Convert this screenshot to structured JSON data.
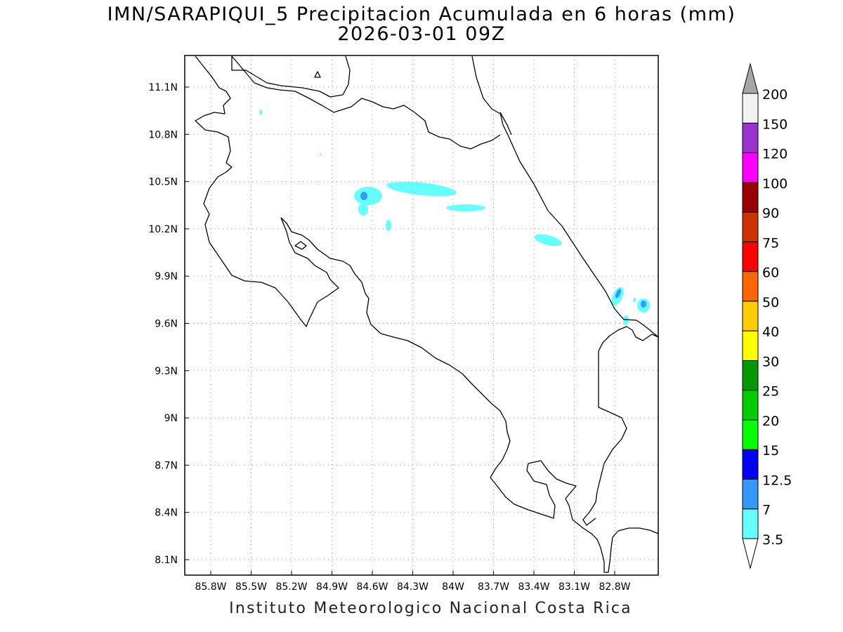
{
  "title": {
    "line1": "IMN/SARAPIQUI_5 Precipitacion Acumulada en 6 horas (mm)",
    "line2": "2026-03-01 09Z"
  },
  "credit": "Instituto Meteorologico Nacional Costa Rica",
  "map": {
    "lon_range": [
      -86.0,
      -82.5
    ],
    "lat_range": [
      8.0,
      11.3
    ],
    "lon_ticks": [
      {
        "value": -85.8,
        "label": "85.8W"
      },
      {
        "value": -85.5,
        "label": "85.5W"
      },
      {
        "value": -85.2,
        "label": "85.2W"
      },
      {
        "value": -84.9,
        "label": "84.9W"
      },
      {
        "value": -84.6,
        "label": "84.6W"
      },
      {
        "value": -84.3,
        "label": "84.3W"
      },
      {
        "value": -84.0,
        "label": "84W"
      },
      {
        "value": -83.7,
        "label": "83.7W"
      },
      {
        "value": -83.4,
        "label": "83.4W"
      },
      {
        "value": -83.1,
        "label": "83.1W"
      },
      {
        "value": -82.8,
        "label": "82.8W"
      }
    ],
    "lat_ticks": [
      {
        "value": 11.1,
        "label": "11.1N"
      },
      {
        "value": 10.8,
        "label": "10.8N"
      },
      {
        "value": 10.5,
        "label": "10.5N"
      },
      {
        "value": 10.2,
        "label": "10.2N"
      },
      {
        "value": 9.9,
        "label": "9.9N"
      },
      {
        "value": 9.6,
        "label": "9.6N"
      },
      {
        "value": 9.3,
        "label": "9.3N"
      },
      {
        "value": 9.0,
        "label": "9N"
      },
      {
        "value": 8.7,
        "label": "8.7N"
      },
      {
        "value": 8.4,
        "label": "8.4N"
      },
      {
        "value": 8.1,
        "label": "8.1N"
      }
    ],
    "grid": true
  },
  "colorbar": {
    "labels": [
      "3.5",
      "7",
      "12.5",
      "15",
      "20",
      "25",
      "30",
      "40",
      "50",
      "60",
      "75",
      "90",
      "100",
      "120",
      "150",
      "200"
    ],
    "colors": [
      "#ffffff",
      "#66ffff",
      "#3399ff",
      "#0000ff",
      "#00ff00",
      "#00cc00",
      "#009900",
      "#ffff00",
      "#ffcc00",
      "#ff6600",
      "#ff0000",
      "#cc3300",
      "#990000",
      "#ff00ff",
      "#9933cc",
      "#f2f2f2",
      "#a6a6a6"
    ]
  }
}
